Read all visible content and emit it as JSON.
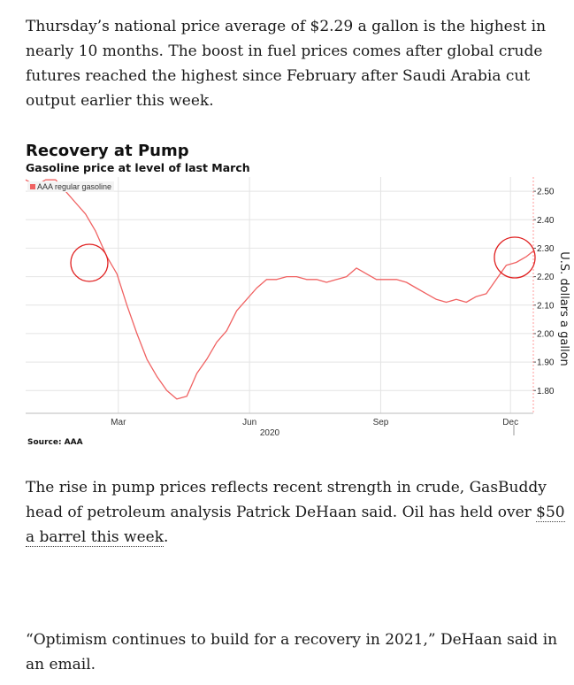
{
  "article": {
    "para1": "Thursday’s national price average of $2.29 a gallon is the highest in nearly 10 months. The boost in fuel prices comes after global crude futures reached the highest since February after Saudi Arabia cut output earlier this week.",
    "para2_before": "The rise in pump prices reflects recent strength in crude, GasBuddy head of petroleum analysis Patrick DeHaan said. Oil has held over ",
    "para2_link": "$50 a barrel this week",
    "para2_after": ".",
    "para3": "“Optimism continues to build for a recovery in 2021,” DeHaan said in an email."
  },
  "colors": {
    "series": "#f06262",
    "highlight": "#e02020",
    "grid": "#e4e4e4"
  },
  "chart_data": {
    "type": "line",
    "title": "Recovery at Pump",
    "subtitle": "Gasoline price at level of last March",
    "ylabel": "U.S. dollars a gallon",
    "source": "Source: AAA",
    "legend": {
      "entries": [
        "AAA regular gasoline"
      ],
      "placement": "top-left"
    },
    "ylim": [
      1.72,
      2.55
    ],
    "yticks": [
      1.8,
      1.9,
      2.0,
      2.1,
      2.2,
      2.3,
      2.4,
      2.5
    ],
    "ytick_labels": [
      "1.80",
      "1.90",
      "2.00",
      "2.10",
      "2.20",
      "2.30",
      "2.40",
      "2.50"
    ],
    "x_axis": {
      "start": "2020-01-10",
      "end": "2020-12-31",
      "year_label": "2020"
    },
    "xticks": [
      {
        "date": "2020-03-15",
        "label": "Mar"
      },
      {
        "date": "2020-06-15",
        "label": "Jun"
      },
      {
        "date": "2020-09-15",
        "label": "Sep"
      },
      {
        "date": "2020-12-15",
        "label": "Dec"
      }
    ],
    "grid": true,
    "series": [
      {
        "name": "AAA regular gasoline",
        "x": [
          "2020-01-10",
          "2020-01-17",
          "2020-01-24",
          "2020-01-31",
          "2020-02-07",
          "2020-02-14",
          "2020-02-21",
          "2020-02-28",
          "2020-03-07",
          "2020-03-14",
          "2020-03-21",
          "2020-03-28",
          "2020-04-04",
          "2020-04-11",
          "2020-04-18",
          "2020-04-25",
          "2020-05-02",
          "2020-05-09",
          "2020-05-16",
          "2020-05-23",
          "2020-05-30",
          "2020-06-06",
          "2020-06-13",
          "2020-06-20",
          "2020-06-27",
          "2020-07-04",
          "2020-07-11",
          "2020-07-18",
          "2020-07-25",
          "2020-08-01",
          "2020-08-08",
          "2020-08-15",
          "2020-08-22",
          "2020-08-29",
          "2020-09-05",
          "2020-09-12",
          "2020-09-19",
          "2020-09-26",
          "2020-10-03",
          "2020-10-10",
          "2020-10-17",
          "2020-10-24",
          "2020-10-31",
          "2020-11-07",
          "2020-11-14",
          "2020-11-21",
          "2020-11-28",
          "2020-12-05",
          "2020-12-12",
          "2020-12-19",
          "2020-12-26",
          "2020-12-31"
        ],
        "values": [
          2.57,
          2.52,
          2.55,
          2.56,
          2.5,
          2.46,
          2.42,
          2.36,
          2.27,
          2.21,
          2.1,
          2.0,
          1.91,
          1.85,
          1.8,
          1.77,
          1.78,
          1.86,
          1.91,
          1.97,
          2.01,
          2.08,
          2.12,
          2.16,
          2.19,
          2.19,
          2.2,
          2.2,
          2.19,
          2.19,
          2.18,
          2.19,
          2.2,
          2.23,
          2.21,
          2.19,
          2.19,
          2.19,
          2.18,
          2.16,
          2.14,
          2.12,
          2.11,
          2.12,
          2.11,
          2.13,
          2.14,
          2.19,
          2.24,
          2.25,
          2.27,
          2.29
        ]
      }
    ]
  }
}
